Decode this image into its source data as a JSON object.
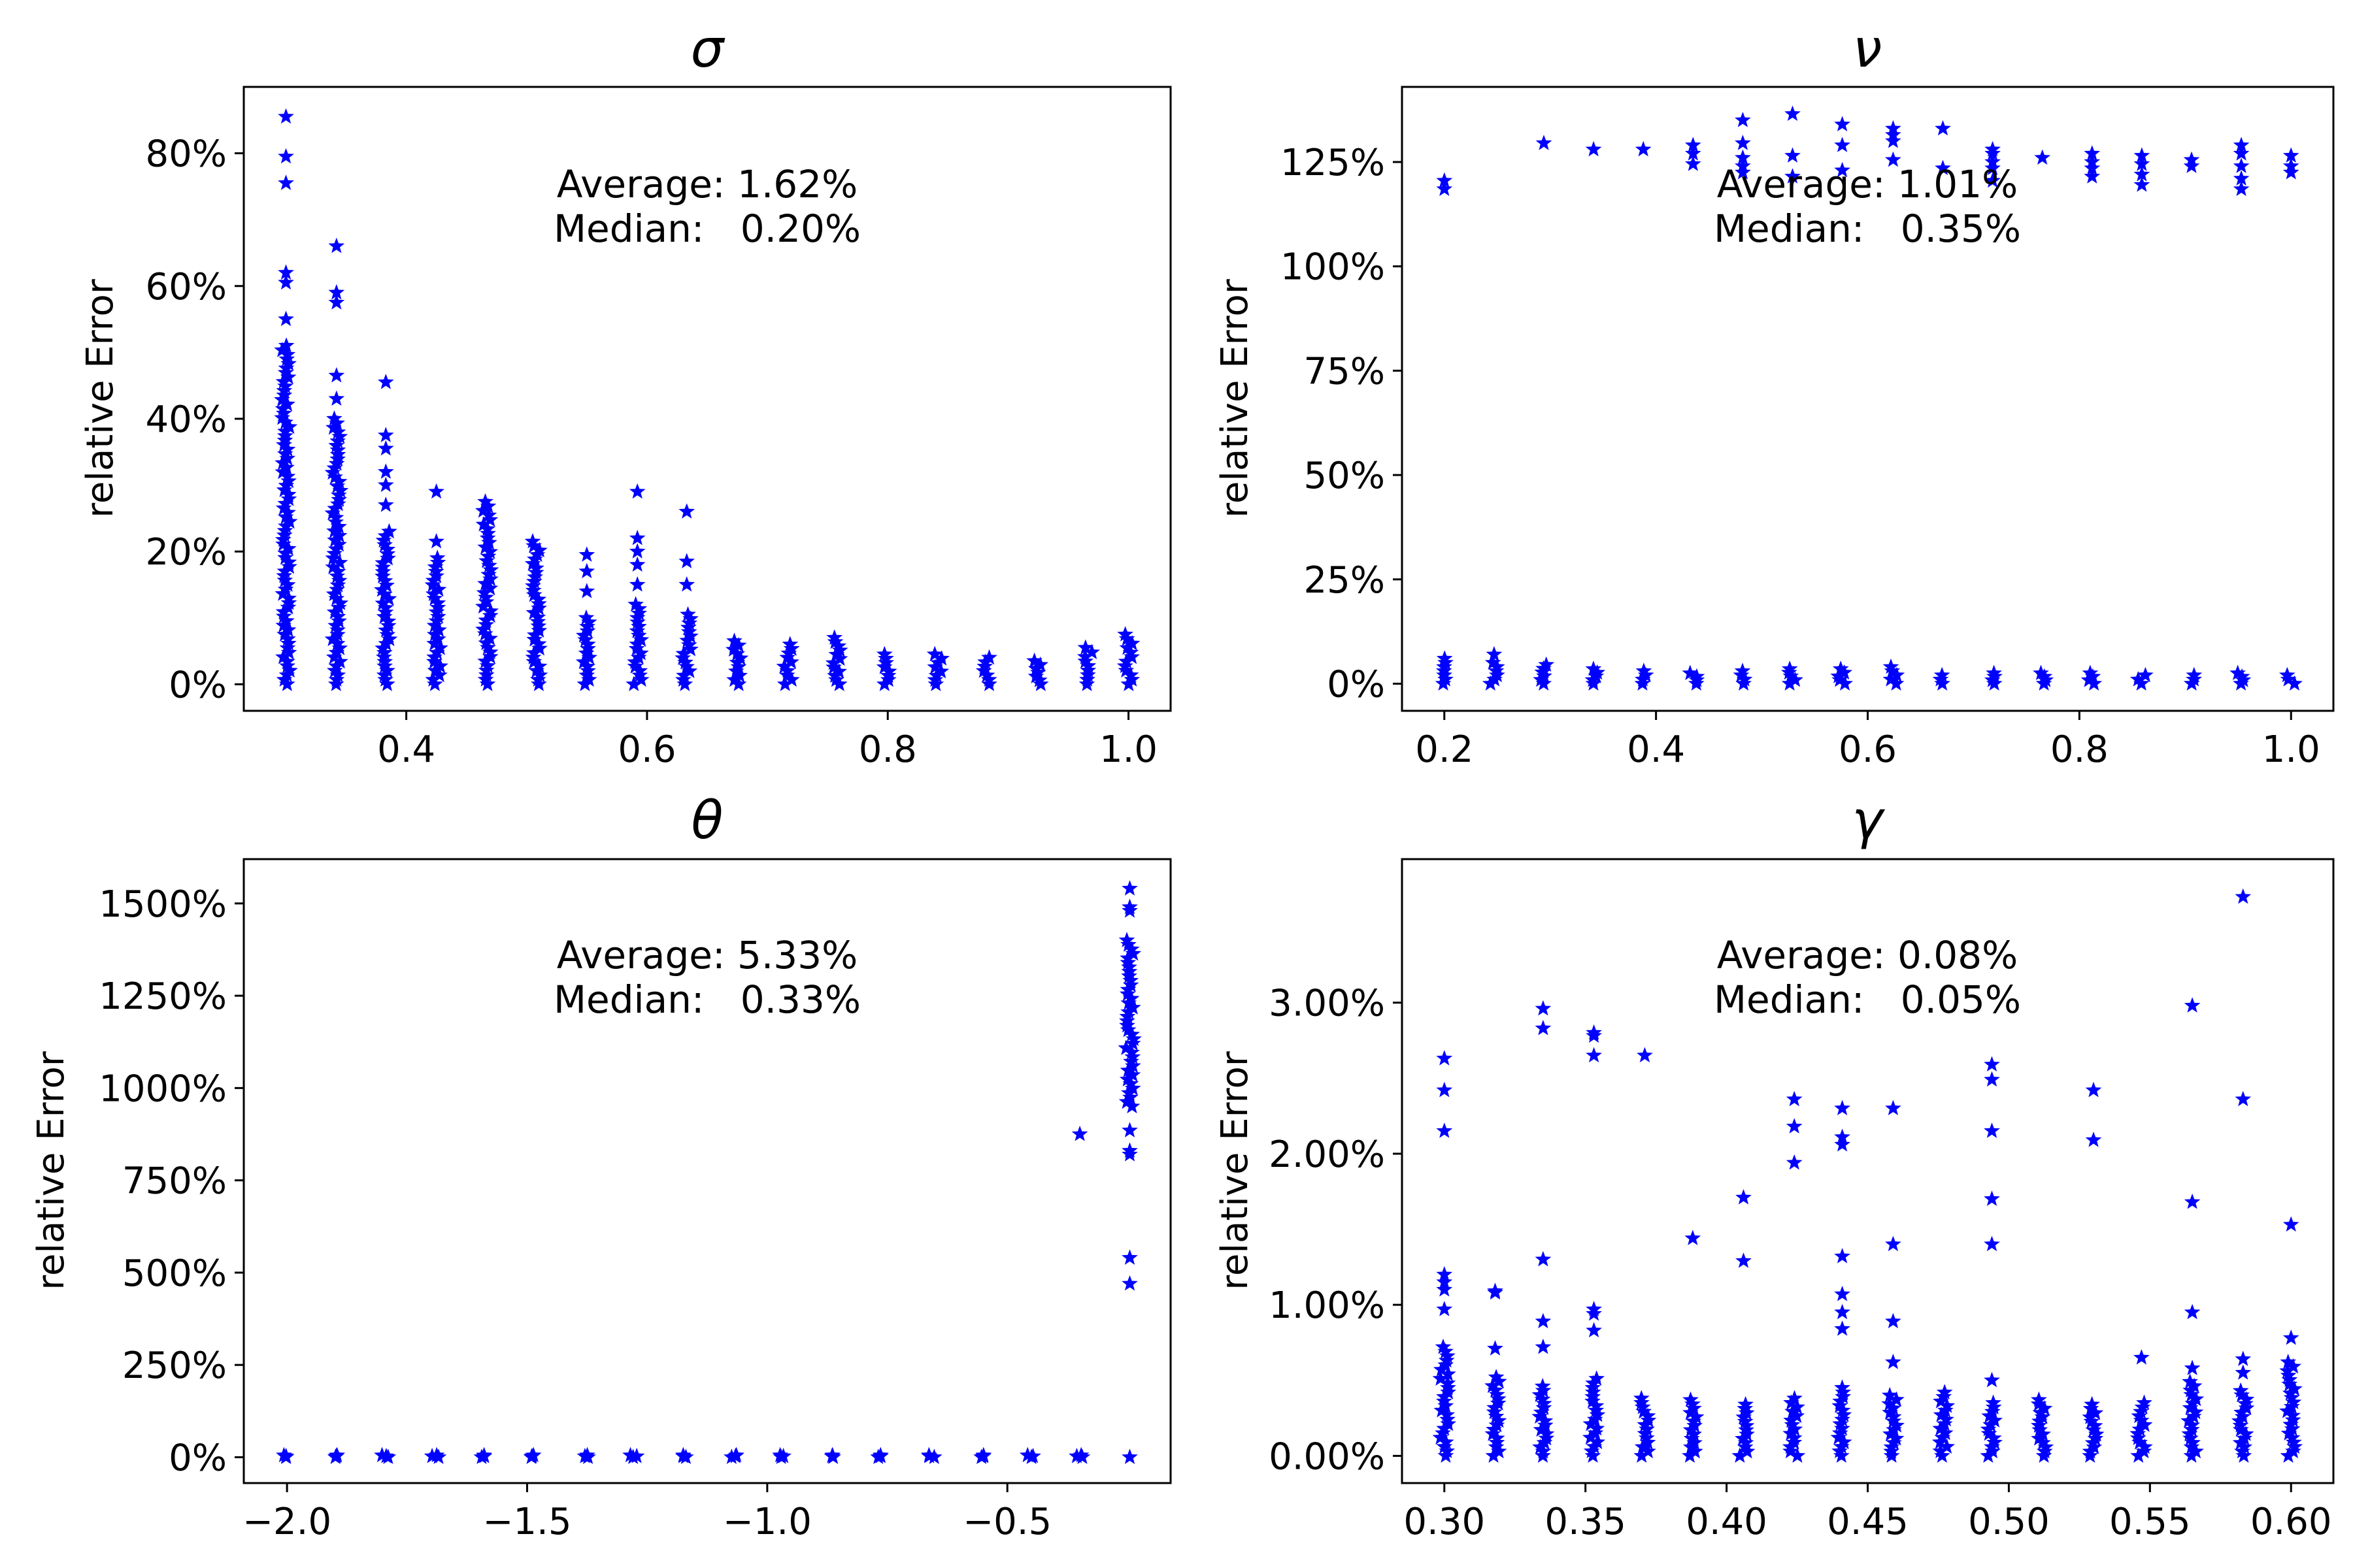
{
  "figure": {
    "marker_color": "#0000ff",
    "marker": "star"
  },
  "chart_data": [
    {
      "type": "scatter",
      "title": "σ",
      "xlabel": "",
      "ylabel": "relative Error",
      "xlim": [
        0.265,
        1.035
      ],
      "ylim": [
        -4,
        90
      ],
      "xticks": [
        0.4,
        0.6,
        0.8,
        1.0
      ],
      "xtick_labels": [
        "0.4",
        "0.6",
        "0.8",
        "1.0"
      ],
      "yticks": [
        0,
        20,
        40,
        60,
        80
      ],
      "ytick_labels": [
        "0%",
        "20%",
        "40%",
        "60%",
        "80%"
      ],
      "annotation": {
        "line1": "Average: 1.62%",
        "line2": "Median:   0.20%"
      },
      "series": [
        {
          "x": 0.3,
          "y_range": [
            0,
            51
          ],
          "outliers": [
            55,
            60.5,
            62,
            75.5,
            79.5,
            85.5
          ]
        },
        {
          "x": 0.342,
          "y_range": [
            0,
            40
          ],
          "outliers": [
            43,
            46.5,
            57.5,
            59,
            66
          ]
        },
        {
          "x": 0.383,
          "y_range": [
            0,
            23
          ],
          "outliers": [
            27,
            30,
            32,
            35.5,
            37.5,
            45.5
          ]
        },
        {
          "x": 0.425,
          "y_range": [
            0,
            19
          ],
          "outliers": [
            21.5,
            29
          ]
        },
        {
          "x": 0.467,
          "y_range": [
            0,
            27.5
          ],
          "outliers": []
        },
        {
          "x": 0.508,
          "y_range": [
            0,
            21.5
          ],
          "outliers": []
        },
        {
          "x": 0.55,
          "y_range": [
            0,
            10
          ],
          "outliers": [
            14,
            17,
            19.5
          ]
        },
        {
          "x": 0.592,
          "y_range": [
            0,
            12
          ],
          "outliers": [
            15,
            18,
            20,
            22,
            29
          ]
        },
        {
          "x": 0.633,
          "y_range": [
            0,
            10.5
          ],
          "outliers": [
            15,
            18.5,
            26
          ]
        },
        {
          "x": 0.675,
          "y_range": [
            0,
            6.5
          ],
          "outliers": []
        },
        {
          "x": 0.717,
          "y_range": [
            0,
            6
          ],
          "outliers": []
        },
        {
          "x": 0.758,
          "y_range": [
            0,
            7
          ],
          "outliers": []
        },
        {
          "x": 0.8,
          "y_range": [
            0,
            4.5
          ],
          "outliers": []
        },
        {
          "x": 0.842,
          "y_range": [
            0,
            4.5
          ],
          "outliers": []
        },
        {
          "x": 0.883,
          "y_range": [
            0,
            4
          ],
          "outliers": []
        },
        {
          "x": 0.925,
          "y_range": [
            0,
            3.5
          ],
          "outliers": []
        },
        {
          "x": 0.967,
          "y_range": [
            0,
            5.5
          ],
          "outliers": []
        },
        {
          "x": 1.0,
          "y_range": [
            0,
            7.5
          ],
          "outliers": []
        }
      ]
    },
    {
      "type": "scatter",
      "title": "ν",
      "xlabel": "",
      "ylabel": "relative Error",
      "xlim": [
        0.16,
        1.04
      ],
      "ylim": [
        -6.5,
        143
      ],
      "xticks": [
        0.2,
        0.4,
        0.6,
        0.8,
        1.0
      ],
      "xtick_labels": [
        "0.2",
        "0.4",
        "0.6",
        "0.8",
        "1.0"
      ],
      "yticks": [
        0,
        25,
        50,
        75,
        100,
        125
      ],
      "ytick_labels": [
        "0%",
        "25%",
        "50%",
        "75%",
        "100%",
        "125%"
      ],
      "annotation": {
        "line1": "Average: 1.01%",
        "line2": "Median:   0.35%"
      },
      "series": [
        {
          "x": 0.2,
          "y_range": [
            0,
            6
          ],
          "outliers": [
            118.5,
            120.5
          ]
        },
        {
          "x": 0.247,
          "y_range": [
            0,
            5
          ],
          "outliers": [
            7
          ]
        },
        {
          "x": 0.294,
          "y_range": [
            0,
            4.5
          ],
          "outliers": [
            129.5
          ]
        },
        {
          "x": 0.341,
          "y_range": [
            0,
            3.5
          ],
          "outliers": [
            128
          ]
        },
        {
          "x": 0.388,
          "y_range": [
            0,
            3
          ],
          "outliers": [
            128
          ]
        },
        {
          "x": 0.435,
          "y_range": [
            0,
            2.5
          ],
          "outliers": [
            124.5,
            127,
            129
          ]
        },
        {
          "x": 0.482,
          "y_range": [
            0,
            3
          ],
          "outliers": [
            122.5,
            124,
            126,
            129.5,
            135
          ]
        },
        {
          "x": 0.529,
          "y_range": [
            0,
            3.5
          ],
          "outliers": [
            121.5,
            126.5,
            136.5
          ]
        },
        {
          "x": 0.576,
          "y_range": [
            0,
            3.5
          ],
          "outliers": [
            123,
            129,
            134
          ]
        },
        {
          "x": 0.624,
          "y_range": [
            0,
            4
          ],
          "outliers": [
            125.5,
            130,
            131.5,
            133
          ]
        },
        {
          "x": 0.671,
          "y_range": [
            0,
            2
          ],
          "outliers": [
            123.5,
            133
          ]
        },
        {
          "x": 0.718,
          "y_range": [
            0,
            2.5
          ],
          "outliers": [
            120.5,
            123.5,
            125,
            127,
            128
          ]
        },
        {
          "x": 0.765,
          "y_range": [
            0,
            2.5
          ],
          "outliers": [
            126
          ]
        },
        {
          "x": 0.812,
          "y_range": [
            0,
            2.5
          ],
          "outliers": [
            121.5,
            123.5,
            125,
            127
          ]
        },
        {
          "x": 0.859,
          "y_range": [
            0,
            2
          ],
          "outliers": [
            119.5,
            122,
            124.5,
            126.5
          ]
        },
        {
          "x": 0.906,
          "y_range": [
            0,
            2
          ],
          "outliers": [
            124,
            125.5
          ]
        },
        {
          "x": 0.953,
          "y_range": [
            0,
            2.5
          ],
          "outliers": [
            118.5,
            121,
            124,
            127,
            129
          ]
        },
        {
          "x": 1.0,
          "y_range": [
            0,
            2
          ],
          "outliers": [
            122.5,
            124,
            126.5
          ]
        }
      ]
    },
    {
      "type": "scatter",
      "title": "θ",
      "xlabel": "",
      "ylabel": "relative Error",
      "xlim": [
        -2.09,
        -0.16
      ],
      "ylim": [
        -70,
        1620
      ],
      "xticks": [
        -2.0,
        -1.5,
        -1.0,
        -0.5
      ],
      "xtick_labels": [
        "−2.0",
        "−1.5",
        "−1.0",
        "−0.5"
      ],
      "yticks": [
        0,
        250,
        500,
        750,
        1000,
        1250,
        1500
      ],
      "ytick_labels": [
        "0%",
        "250%",
        "500%",
        "750%",
        "1000%",
        "1250%",
        "1500%"
      ],
      "annotation": {
        "line1": "Average: 5.33%",
        "line2": "Median:   0.33%"
      },
      "series": [
        {
          "x": -2.0,
          "y_range": [
            0,
            5
          ],
          "outliers": []
        },
        {
          "x": -1.897,
          "y_range": [
            0,
            5
          ],
          "outliers": []
        },
        {
          "x": -1.794,
          "y_range": [
            0,
            5
          ],
          "outliers": []
        },
        {
          "x": -1.69,
          "y_range": [
            0,
            5
          ],
          "outliers": []
        },
        {
          "x": -1.587,
          "y_range": [
            0,
            5
          ],
          "outliers": []
        },
        {
          "x": -1.484,
          "y_range": [
            0,
            5
          ],
          "outliers": []
        },
        {
          "x": -1.381,
          "y_range": [
            0,
            5
          ],
          "outliers": []
        },
        {
          "x": -1.278,
          "y_range": [
            0,
            5
          ],
          "outliers": []
        },
        {
          "x": -1.174,
          "y_range": [
            0,
            5
          ],
          "outliers": []
        },
        {
          "x": -1.071,
          "y_range": [
            0,
            5
          ],
          "outliers": []
        },
        {
          "x": -0.968,
          "y_range": [
            0,
            5
          ],
          "outliers": []
        },
        {
          "x": -0.865,
          "y_range": [
            0,
            5
          ],
          "outliers": []
        },
        {
          "x": -0.761,
          "y_range": [
            0,
            5
          ],
          "outliers": []
        },
        {
          "x": -0.658,
          "y_range": [
            0,
            5
          ],
          "outliers": []
        },
        {
          "x": -0.555,
          "y_range": [
            0,
            5
          ],
          "outliers": []
        },
        {
          "x": -0.452,
          "y_range": [
            0,
            5
          ],
          "outliers": []
        },
        {
          "x": -0.349,
          "y_range": [
            0,
            5
          ],
          "outliers": [
            875
          ]
        },
        {
          "x": -0.245,
          "y_range": [
            950,
            1400
          ],
          "outliers": [
            0,
            470,
            540,
            820,
            830,
            885,
            1480,
            1490,
            1540
          ]
        }
      ]
    },
    {
      "type": "scatter",
      "title": "γ",
      "xlabel": "",
      "ylabel": "relative Error",
      "xlim": [
        0.285,
        0.615
      ],
      "ylim": [
        -0.18,
        3.95
      ],
      "xticks": [
        0.3,
        0.35,
        0.4,
        0.45,
        0.5,
        0.55,
        0.6
      ],
      "xtick_labels": [
        "0.30",
        "0.35",
        "0.40",
        "0.45",
        "0.50",
        "0.55",
        "0.60"
      ],
      "yticks": [
        0,
        1,
        2,
        3
      ],
      "ytick_labels": [
        "0.00%",
        "1.00%",
        "2.00%",
        "3.00%"
      ],
      "annotation": {
        "line1": "Average: 0.08%",
        "line2": "Median:   0.05%"
      },
      "series": [
        {
          "x": 0.3,
          "y_range": [
            0,
            0.72
          ],
          "outliers": [
            0.97,
            1.1,
            1.15,
            1.2,
            2.15,
            2.42,
            2.63
          ]
        },
        {
          "x": 0.318,
          "y_range": [
            0,
            0.52
          ],
          "outliers": [
            0.71,
            1.08,
            1.09
          ]
        },
        {
          "x": 0.335,
          "y_range": [
            0,
            0.46
          ],
          "outliers": [
            0.72,
            0.89,
            1.3,
            2.83,
            2.96
          ]
        },
        {
          "x": 0.353,
          "y_range": [
            0,
            0.51
          ],
          "outliers": [
            0.83,
            0.94,
            0.97,
            2.65,
            2.78,
            2.8
          ]
        },
        {
          "x": 0.371,
          "y_range": [
            0,
            0.38
          ],
          "outliers": [
            2.65
          ]
        },
        {
          "x": 0.388,
          "y_range": [
            0,
            0.37
          ],
          "outliers": [
            1.44
          ]
        },
        {
          "x": 0.406,
          "y_range": [
            0,
            0.34
          ],
          "outliers": [
            1.29,
            1.71
          ]
        },
        {
          "x": 0.424,
          "y_range": [
            0,
            0.38
          ],
          "outliers": [
            1.94,
            2.18,
            2.36
          ]
        },
        {
          "x": 0.441,
          "y_range": [
            0,
            0.45
          ],
          "outliers": [
            0.84,
            0.95,
            1.07,
            1.32,
            2.06,
            2.11,
            2.3
          ]
        },
        {
          "x": 0.459,
          "y_range": [
            0,
            0.4
          ],
          "outliers": [
            0.62,
            0.89,
            1.4,
            2.3
          ]
        },
        {
          "x": 0.477,
          "y_range": [
            0,
            0.42
          ],
          "outliers": []
        },
        {
          "x": 0.494,
          "y_range": [
            0,
            0.35
          ],
          "outliers": [
            0.5,
            1.4,
            1.7,
            2.15,
            2.49,
            2.59
          ]
        },
        {
          "x": 0.512,
          "y_range": [
            0,
            0.37
          ],
          "outliers": []
        },
        {
          "x": 0.53,
          "y_range": [
            0,
            0.34
          ],
          "outliers": [
            2.09,
            2.42
          ]
        },
        {
          "x": 0.547,
          "y_range": [
            0,
            0.35
          ],
          "outliers": [
            0.65
          ]
        },
        {
          "x": 0.565,
          "y_range": [
            0,
            0.49
          ],
          "outliers": [
            0.58,
            0.95,
            1.68,
            2.98
          ]
        },
        {
          "x": 0.583,
          "y_range": [
            0,
            0.43
          ],
          "outliers": [
            0.55,
            0.64,
            2.36,
            3.7
          ]
        },
        {
          "x": 0.6,
          "y_range": [
            0,
            0.62
          ],
          "outliers": [
            0.78,
            1.53
          ]
        }
      ]
    }
  ]
}
